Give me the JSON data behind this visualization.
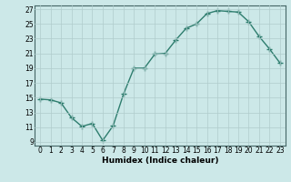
{
  "x": [
    0,
    1,
    2,
    3,
    4,
    5,
    6,
    7,
    8,
    9,
    10,
    11,
    12,
    13,
    14,
    15,
    16,
    17,
    18,
    19,
    20,
    21,
    22,
    23
  ],
  "y": [
    14.8,
    14.7,
    14.3,
    12.3,
    11.1,
    11.5,
    9.2,
    11.2,
    15.5,
    19.0,
    19.0,
    20.9,
    21.0,
    22.8,
    24.4,
    25.0,
    26.4,
    26.8,
    26.7,
    26.6,
    25.3,
    23.3,
    21.6,
    19.7
  ],
  "line_color": "#2e7d6e",
  "marker": "+",
  "marker_size": 4,
  "marker_linewidth": 1.0,
  "xlabel": "Humidex (Indice chaleur)",
  "xlim": [
    -0.5,
    23.5
  ],
  "ylim": [
    8.5,
    27.5
  ],
  "yticks": [
    9,
    11,
    13,
    15,
    17,
    19,
    21,
    23,
    25,
    27
  ],
  "xticks": [
    0,
    1,
    2,
    3,
    4,
    5,
    6,
    7,
    8,
    9,
    10,
    11,
    12,
    13,
    14,
    15,
    16,
    17,
    18,
    19,
    20,
    21,
    22,
    23
  ],
  "bg_color": "#cce8e8",
  "grid_color": "#b0cccc",
  "linewidth": 1.0,
  "tick_labelsize": 5.5,
  "xlabel_fontsize": 6.5
}
